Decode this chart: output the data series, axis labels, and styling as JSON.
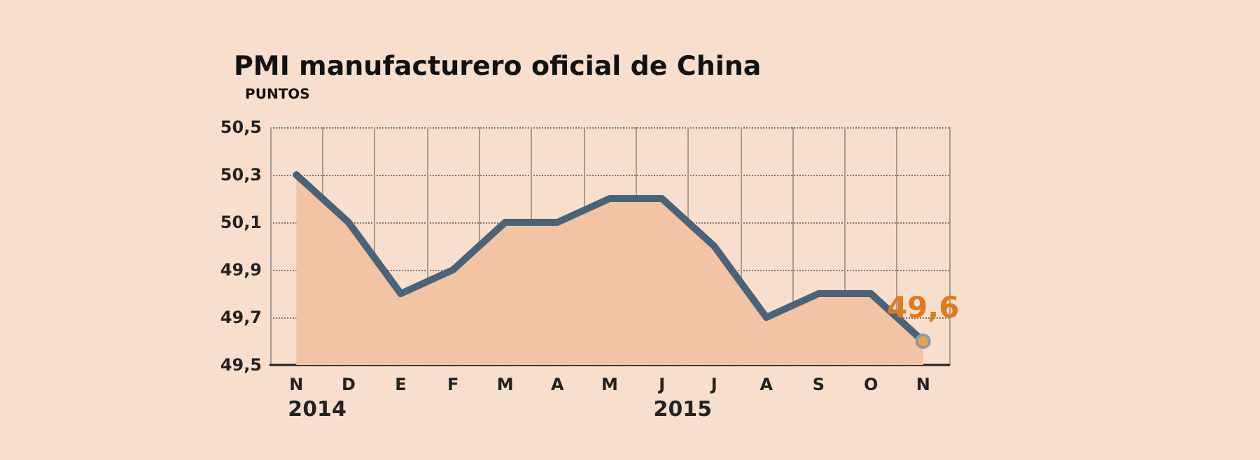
{
  "chart_data": {
    "type": "area",
    "title": "PMI manufacturero oficial de China",
    "ylabel": "PUNTOS",
    "categories": [
      "N",
      "D",
      "E",
      "F",
      "M",
      "A",
      "M",
      "J",
      "J",
      "A",
      "S",
      "O",
      "N"
    ],
    "series": [
      {
        "color": "#f2c4a4",
        "values": [
          50.3,
          50.1,
          49.8,
          49.9,
          50.1,
          50.1,
          50.2,
          50.2,
          50.0,
          49.7,
          49.8,
          49.8,
          49.6
        ]
      },
      {
        "type": "line",
        "color": "#4a6378",
        "values": [
          50.3,
          50.1,
          49.8,
          49.9,
          50.1,
          50.1,
          50.2,
          50.2,
          50.0,
          49.7,
          49.8,
          49.8,
          49.6
        ],
        "value_labels": [
          null,
          null,
          null,
          null,
          null,
          null,
          null,
          null,
          null,
          null,
          null,
          null,
          "49,6"
        ]
      }
    ],
    "ylim": [
      49.5,
      50.5
    ],
    "yticks": [
      {
        "value": 49.5,
        "label": "49,5"
      },
      {
        "value": 49.7,
        "label": "49,7"
      },
      {
        "value": 49.9,
        "label": "49,9"
      },
      {
        "value": 50.1,
        "label": "50,1"
      },
      {
        "value": 50.3,
        "label": "50,3"
      },
      {
        "value": 50.5,
        "label": "50,5"
      }
    ],
    "grid": true,
    "annotations": [
      "2014",
      "2015"
    ]
  }
}
